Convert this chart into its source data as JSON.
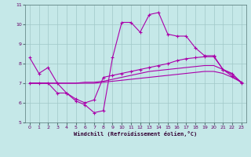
{
  "xlabel": "Windchill (Refroidissement éolien,°C)",
  "bg_color": "#c5e8e8",
  "grid_color": "#a0c8c8",
  "line_color": "#aa00aa",
  "xlim": [
    -0.5,
    23.5
  ],
  "ylim": [
    5,
    11
  ],
  "yticks": [
    5,
    6,
    7,
    8,
    9,
    10,
    11
  ],
  "xticks": [
    0,
    1,
    2,
    3,
    4,
    5,
    6,
    7,
    8,
    9,
    10,
    11,
    12,
    13,
    14,
    15,
    16,
    17,
    18,
    19,
    20,
    21,
    22,
    23
  ],
  "series1_x": [
    0,
    1,
    2,
    3,
    4,
    5,
    6,
    7,
    8,
    9,
    10,
    11,
    12,
    13,
    14,
    15,
    16,
    17,
    18,
    19,
    20,
    21,
    22,
    23
  ],
  "series1_y": [
    8.3,
    7.5,
    7.8,
    7.0,
    6.5,
    6.1,
    5.9,
    5.5,
    5.6,
    8.3,
    10.1,
    10.1,
    9.6,
    10.5,
    10.6,
    9.5,
    9.4,
    9.4,
    8.8,
    8.4,
    8.4,
    7.7,
    7.5,
    7.0
  ],
  "series2_x": [
    0,
    1,
    2,
    3,
    4,
    5,
    6,
    7,
    8,
    9,
    10,
    11,
    12,
    13,
    14,
    15,
    16,
    17,
    18,
    19,
    20,
    21,
    22,
    23
  ],
  "series2_y": [
    7.0,
    7.0,
    7.0,
    6.5,
    6.5,
    6.2,
    6.0,
    6.15,
    7.3,
    7.4,
    7.5,
    7.6,
    7.7,
    7.8,
    7.9,
    8.0,
    8.15,
    8.25,
    8.3,
    8.35,
    8.35,
    7.7,
    7.35,
    7.05
  ],
  "series3_x": [
    0,
    1,
    2,
    3,
    4,
    5,
    6,
    7,
    8,
    9,
    10,
    11,
    12,
    13,
    14,
    15,
    16,
    17,
    18,
    19,
    20,
    21,
    22,
    23
  ],
  "series3_y": [
    7.0,
    7.0,
    7.0,
    7.0,
    7.0,
    7.0,
    7.05,
    7.05,
    7.1,
    7.2,
    7.3,
    7.4,
    7.5,
    7.6,
    7.65,
    7.7,
    7.75,
    7.8,
    7.85,
    7.9,
    7.9,
    7.7,
    7.45,
    7.05
  ],
  "series4_x": [
    0,
    1,
    2,
    3,
    4,
    5,
    6,
    7,
    8,
    9,
    10,
    11,
    12,
    13,
    14,
    15,
    16,
    17,
    18,
    19,
    20,
    21,
    22,
    23
  ],
  "series4_y": [
    7.0,
    7.0,
    7.0,
    7.0,
    7.0,
    7.0,
    7.0,
    7.0,
    7.05,
    7.1,
    7.15,
    7.2,
    7.25,
    7.3,
    7.35,
    7.4,
    7.45,
    7.5,
    7.55,
    7.6,
    7.6,
    7.5,
    7.3,
    7.05
  ]
}
